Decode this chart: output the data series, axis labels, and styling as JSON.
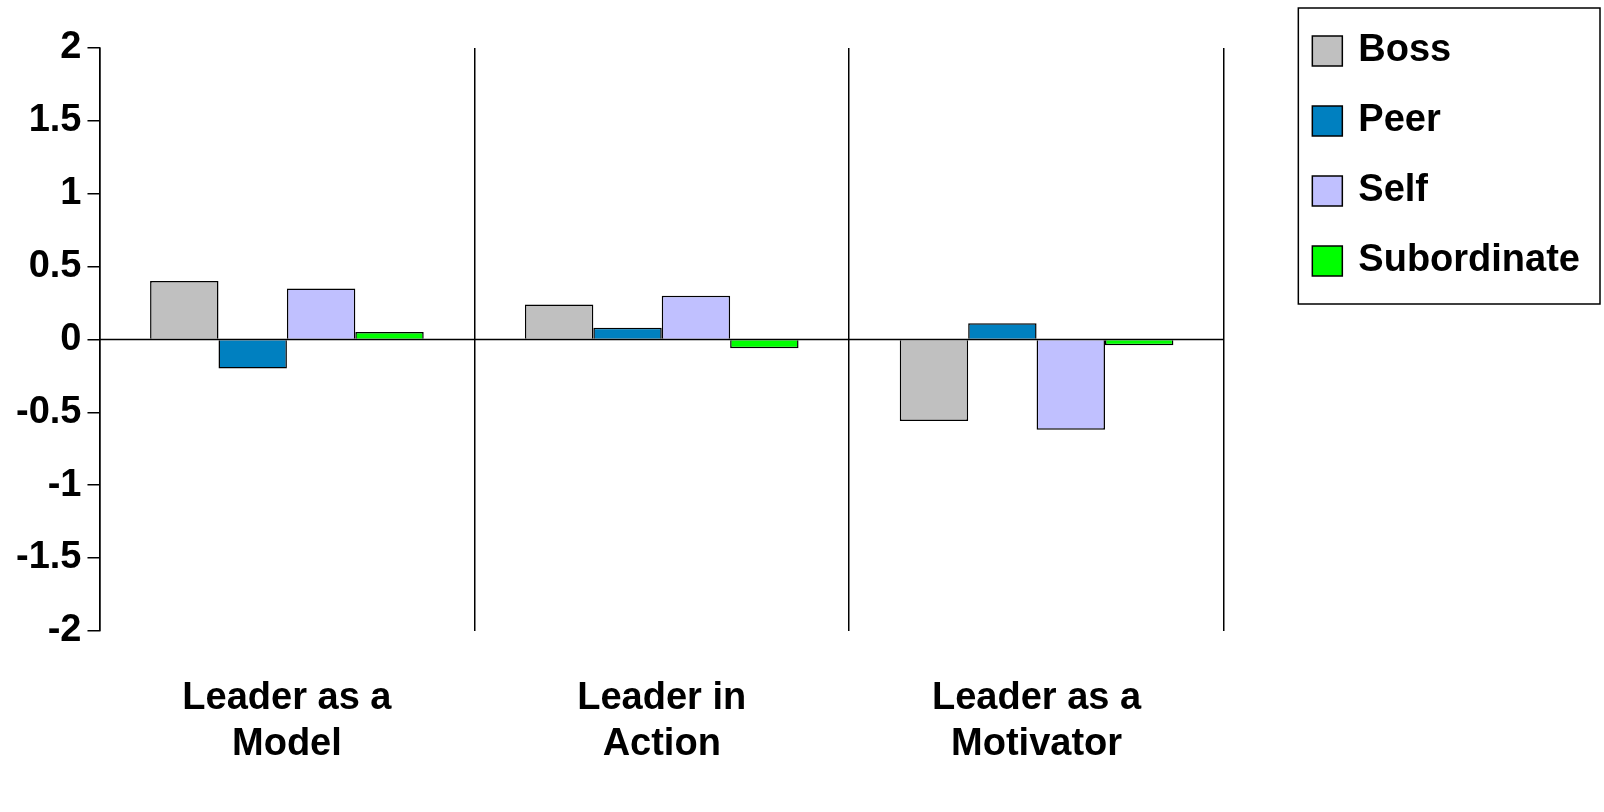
{
  "chart_data": {
    "type": "bar",
    "categories": [
      "Leader as a Model",
      "Leader in Action",
      "Leader as a Motivator"
    ],
    "series": [
      {
        "name": "Boss",
        "color": "#c0c0c0",
        "values": [
          0.4,
          0.24,
          -0.56
        ]
      },
      {
        "name": "Peer",
        "color": "#0080c0",
        "values": [
          -0.2,
          0.08,
          0.11
        ]
      },
      {
        "name": "Self",
        "color": "#c0c0ff",
        "values": [
          0.35,
          0.3,
          -0.62
        ]
      },
      {
        "name": "Subordinate",
        "color": "#00ff00",
        "values": [
          0.05,
          -0.06,
          -0.04
        ]
      }
    ],
    "ref_lines": [
      {
        "axis": "y",
        "value": 0,
        "color": "#000000"
      }
    ],
    "ylim": [
      -2,
      2
    ],
    "yticks": [
      -2,
      -1.5,
      -1,
      -0.5,
      0,
      0.5,
      1,
      1.5,
      2
    ],
    "grid": "x",
    "legend": "top right"
  }
}
